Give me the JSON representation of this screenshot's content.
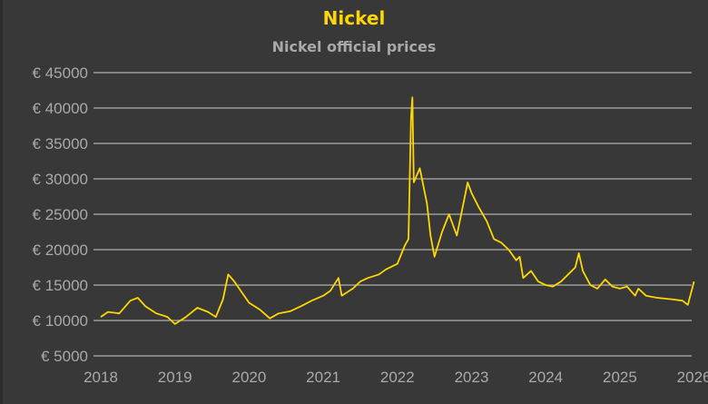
{
  "chart_data": {
    "type": "line",
    "title": "Nickel",
    "subtitle": "Nickel official prices",
    "xlabel": "",
    "ylabel": "",
    "ylim": [
      5000,
      45000
    ],
    "xlim": [
      "2018-01-01",
      "2026-01-01"
    ],
    "grid": "horizontal",
    "line_color": "#ffd700",
    "y_ticks": [
      "€ 45000",
      "€ 40000",
      "€ 35000",
      "€ 30000",
      "€ 25000",
      "€ 20000",
      "€ 15000",
      "€ 10000",
      "€ 5000"
    ],
    "y_tick_values": [
      45000,
      40000,
      35000,
      30000,
      25000,
      20000,
      15000,
      10000,
      5000
    ],
    "x_ticks": [
      "2018",
      "2019",
      "2020",
      "2021",
      "2022",
      "2023",
      "2024",
      "2025",
      "2026"
    ],
    "series": [
      {
        "points": [
          [
            "2018-01-01",
            10500
          ],
          [
            "2018-02-06",
            11200
          ],
          [
            "2018-04-01",
            11000
          ],
          [
            "2018-05-25",
            12800
          ],
          [
            "2018-07-01",
            13200
          ],
          [
            "2018-08-08",
            12000
          ],
          [
            "2018-10-01",
            11000
          ],
          [
            "2018-11-25",
            10500
          ],
          [
            "2019-01-01",
            9500
          ],
          [
            "2019-02-25",
            10500
          ],
          [
            "2019-04-20",
            11800
          ],
          [
            "2019-06-12",
            11200
          ],
          [
            "2019-07-20",
            10500
          ],
          [
            "2019-08-25",
            13000
          ],
          [
            "2019-09-20",
            16500
          ],
          [
            "2019-10-20",
            15500
          ],
          [
            "2019-11-25",
            14000
          ],
          [
            "2020-01-01",
            12500
          ],
          [
            "2020-02-25",
            11500
          ],
          [
            "2020-04-12",
            10300
          ],
          [
            "2020-05-25",
            11000
          ],
          [
            "2020-07-20",
            11300
          ],
          [
            "2020-09-12",
            12000
          ],
          [
            "2020-11-05",
            12800
          ],
          [
            "2021-01-01",
            13500
          ],
          [
            "2021-02-06",
            14200
          ],
          [
            "2021-03-15",
            16000
          ],
          [
            "2021-04-01",
            13500
          ],
          [
            "2021-05-25",
            14500
          ],
          [
            "2021-07-01",
            15500
          ],
          [
            "2021-08-08",
            16000
          ],
          [
            "2021-10-01",
            16500
          ],
          [
            "2021-11-05",
            17200
          ],
          [
            "2022-01-01",
            18000
          ],
          [
            "2022-02-06",
            20500
          ],
          [
            "2022-02-25",
            21500
          ],
          [
            "2022-03-07",
            38500
          ],
          [
            "2022-03-14",
            41500
          ],
          [
            "2022-03-21",
            29500
          ],
          [
            "2022-04-20",
            31500
          ],
          [
            "2022-05-25",
            26500
          ],
          [
            "2022-06-12",
            22000
          ],
          [
            "2022-07-01",
            19000
          ],
          [
            "2022-08-08",
            22500
          ],
          [
            "2022-09-12",
            25000
          ],
          [
            "2022-10-20",
            22000
          ],
          [
            "2022-11-25",
            27000
          ],
          [
            "2022-12-12",
            29500
          ],
          [
            "2023-01-01",
            28000
          ],
          [
            "2023-02-06",
            26000
          ],
          [
            "2023-03-15",
            24000
          ],
          [
            "2023-04-20",
            21500
          ],
          [
            "2023-05-25",
            21000
          ],
          [
            "2023-07-01",
            20000
          ],
          [
            "2023-08-08",
            18500
          ],
          [
            "2023-08-25",
            19000
          ],
          [
            "2023-09-12",
            16000
          ],
          [
            "2023-10-20",
            17000
          ],
          [
            "2023-11-25",
            15500
          ],
          [
            "2024-01-01",
            15000
          ],
          [
            "2024-02-06",
            14800
          ],
          [
            "2024-03-15",
            15500
          ],
          [
            "2024-04-20",
            16500
          ],
          [
            "2024-05-25",
            17500
          ],
          [
            "2024-06-12",
            19500
          ],
          [
            "2024-07-01",
            17000
          ],
          [
            "2024-08-08",
            15000
          ],
          [
            "2024-09-12",
            14500
          ],
          [
            "2024-10-20",
            15800
          ],
          [
            "2024-11-25",
            14800
          ],
          [
            "2025-01-01",
            14500
          ],
          [
            "2025-02-06",
            14800
          ],
          [
            "2025-03-15",
            13500
          ],
          [
            "2025-04-01",
            14500
          ],
          [
            "2025-05-08",
            13500
          ],
          [
            "2025-07-01",
            13200
          ],
          [
            "2025-09-12",
            13000
          ],
          [
            "2025-11-05",
            12800
          ],
          [
            "2025-12-01",
            12200
          ],
          [
            "2026-01-01",
            15500
          ]
        ]
      }
    ]
  }
}
